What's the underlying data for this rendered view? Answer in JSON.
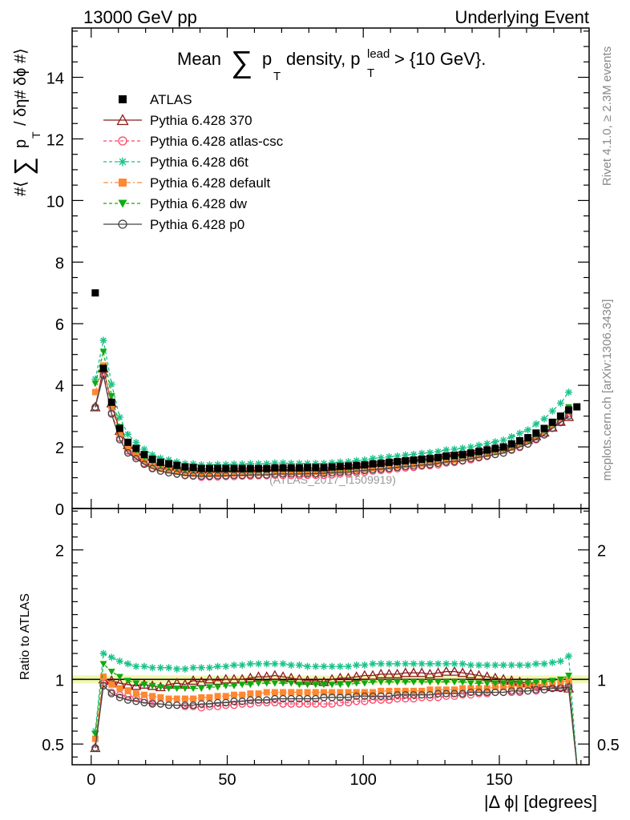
{
  "header": {
    "left": "13000 GeV pp",
    "right": "Underlying Event"
  },
  "side_text": {
    "rivet": "Rivet 4.1.0, ≥ 2.3M events",
    "mcplots": "mcplots.cern.ch [arXiv:1306.3436]"
  },
  "chart_data": {
    "type": "scatter",
    "title_parts": {
      "prefix": "Mean",
      "sum": "∑",
      "p": "p",
      "sub_t": "T",
      "middle": "density, p",
      "sup_lead": "lead",
      "sub_t2": "T",
      "suffix": "> {10 GeV}."
    },
    "ylabel_parts": {
      "a": "#⟨",
      "sum": "∑",
      "p": "p",
      "sub_t": "T",
      "b": "/ δη# δϕ #⟩"
    },
    "xlabel": "|Δ ϕ| [degrees]",
    "ratio_ylabel": "Ratio to ATLAS",
    "watermark": "(ATLAS_2017_I1509919)",
    "xlim": [
      -7,
      183
    ],
    "ylim": [
      0,
      15.6
    ],
    "ratio_ylim": [
      0.34,
      2.32
    ],
    "x_ticks": [
      0,
      50,
      100,
      150
    ],
    "x_tick_labels": [
      "0",
      "50",
      "100",
      "150"
    ],
    "y_ticks": [
      0,
      2,
      4,
      6,
      8,
      10,
      12,
      14
    ],
    "y_tick_labels": [
      "0",
      "2",
      "4",
      "6",
      "8",
      "10",
      "12",
      "14"
    ],
    "ratio_ticks": [
      0.5,
      1,
      2
    ],
    "ratio_tick_labels": [
      "0.5",
      "1",
      "2"
    ],
    "atlas": {
      "name": "ATLAS",
      "x": [
        1.5,
        4.5,
        7.5,
        10.5,
        13.5,
        16.5,
        19.5,
        22.5,
        25.5,
        28.5,
        31.5,
        34.5,
        37.5,
        40.5,
        43.5,
        46.5,
        49.5,
        52.5,
        55.5,
        58.5,
        61.5,
        64.5,
        67.5,
        70.5,
        73.5,
        76.5,
        79.5,
        82.5,
        85.5,
        88.5,
        91.5,
        94.5,
        97.5,
        100.5,
        103.5,
        106.5,
        109.5,
        112.5,
        115.5,
        118.5,
        121.5,
        124.5,
        127.5,
        130.5,
        133.5,
        136.5,
        139.5,
        142.5,
        145.5,
        148.5,
        151.5,
        154.5,
        157.5,
        160.5,
        163.5,
        166.5,
        169.5,
        172.5,
        175.5,
        178.5
      ],
      "y": [
        7.0,
        4.55,
        3.45,
        2.6,
        2.15,
        1.95,
        1.75,
        1.6,
        1.5,
        1.45,
        1.4,
        1.35,
        1.33,
        1.3,
        1.3,
        1.3,
        1.3,
        1.3,
        1.3,
        1.3,
        1.3,
        1.3,
        1.32,
        1.32,
        1.32,
        1.32,
        1.33,
        1.33,
        1.33,
        1.35,
        1.37,
        1.38,
        1.4,
        1.42,
        1.45,
        1.47,
        1.5,
        1.52,
        1.55,
        1.57,
        1.6,
        1.62,
        1.65,
        1.7,
        1.72,
        1.75,
        1.8,
        1.85,
        1.9,
        1.95,
        2.0,
        2.1,
        2.2,
        2.3,
        2.45,
        2.6,
        2.8,
        3.0,
        3.2,
        3.3
      ]
    },
    "series": [
      {
        "name": "Pythia 6.428 370",
        "color": "#8b1a1a",
        "marker": "triangle-open",
        "line": "solid",
        "ratio": [
          0.47,
          1.0,
          0.99,
          0.97,
          0.96,
          0.95,
          0.96,
          0.95,
          0.94,
          0.96,
          0.97,
          0.96,
          0.99,
          0.98,
          1.0,
          0.99,
          1.0,
          1.0,
          1.0,
          1.01,
          1.02,
          1.02,
          1.03,
          1.02,
          1.01,
          1.0,
          0.99,
          0.99,
          0.98,
          1.0,
          1.01,
          1.01,
          1.02,
          1.03,
          1.03,
          1.04,
          1.04,
          1.04,
          1.05,
          1.05,
          1.05,
          1.04,
          1.05,
          1.06,
          1.06,
          1.05,
          1.04,
          1.03,
          1.02,
          1.01,
          1.0,
          0.99,
          0.98,
          0.97,
          0.96,
          0.95,
          0.94,
          0.94,
          0.93,
          0.32
        ]
      },
      {
        "name": "Pythia 6.428 atlas-csc",
        "color": "#ff4466",
        "marker": "circle-open",
        "line": "dashed",
        "ratio": [
          0.47,
          0.97,
          0.9,
          0.88,
          0.87,
          0.86,
          0.84,
          0.82,
          0.81,
          0.8,
          0.8,
          0.79,
          0.79,
          0.78,
          0.79,
          0.79,
          0.8,
          0.8,
          0.81,
          0.81,
          0.82,
          0.82,
          0.82,
          0.81,
          0.81,
          0.81,
          0.81,
          0.81,
          0.81,
          0.81,
          0.82,
          0.82,
          0.83,
          0.83,
          0.84,
          0.84,
          0.84,
          0.85,
          0.85,
          0.85,
          0.86,
          0.86,
          0.86,
          0.87,
          0.87,
          0.88,
          0.88,
          0.89,
          0.89,
          0.9,
          0.9,
          0.9,
          0.9,
          0.91,
          0.91,
          0.92,
          0.93,
          0.94,
          0.96,
          0.32
        ]
      },
      {
        "name": "Pythia 6.428 d6t",
        "color": "#19c28a",
        "marker": "star",
        "line": "dashed",
        "ratio": [
          0.6,
          1.2,
          1.17,
          1.14,
          1.12,
          1.1,
          1.1,
          1.09,
          1.09,
          1.09,
          1.08,
          1.08,
          1.09,
          1.09,
          1.09,
          1.1,
          1.1,
          1.11,
          1.11,
          1.12,
          1.12,
          1.12,
          1.12,
          1.12,
          1.11,
          1.11,
          1.1,
          1.1,
          1.1,
          1.1,
          1.1,
          1.1,
          1.11,
          1.11,
          1.12,
          1.12,
          1.12,
          1.12,
          1.12,
          1.12,
          1.12,
          1.12,
          1.12,
          1.12,
          1.12,
          1.12,
          1.11,
          1.11,
          1.11,
          1.11,
          1.11,
          1.11,
          1.11,
          1.11,
          1.12,
          1.12,
          1.13,
          1.14,
          1.18,
          0.32
        ]
      },
      {
        "name": "Pythia 6.428 default",
        "color": "#ff8833",
        "marker": "square",
        "line": "dashdot",
        "ratio": [
          0.54,
          1.02,
          0.96,
          0.93,
          0.91,
          0.89,
          0.88,
          0.87,
          0.86,
          0.85,
          0.85,
          0.85,
          0.85,
          0.86,
          0.86,
          0.87,
          0.87,
          0.88,
          0.88,
          0.89,
          0.89,
          0.9,
          0.9,
          0.9,
          0.9,
          0.9,
          0.9,
          0.9,
          0.9,
          0.9,
          0.9,
          0.9,
          0.9,
          0.9,
          0.9,
          0.91,
          0.91,
          0.91,
          0.91,
          0.91,
          0.91,
          0.92,
          0.92,
          0.92,
          0.92,
          0.93,
          0.93,
          0.93,
          0.93,
          0.94,
          0.94,
          0.94,
          0.95,
          0.95,
          0.96,
          0.96,
          0.97,
          0.98,
          0.99,
          0.32
        ]
      },
      {
        "name": "Pythia 6.428 dw",
        "color": "#11aa11",
        "marker": "triangle-down",
        "line": "dashed",
        "ratio": [
          0.58,
          1.12,
          1.06,
          1.02,
          0.99,
          0.97,
          0.96,
          0.95,
          0.94,
          0.93,
          0.93,
          0.93,
          0.93,
          0.93,
          0.94,
          0.94,
          0.95,
          0.95,
          0.96,
          0.96,
          0.97,
          0.97,
          0.97,
          0.97,
          0.97,
          0.96,
          0.96,
          0.96,
          0.96,
          0.96,
          0.96,
          0.96,
          0.97,
          0.97,
          0.98,
          0.98,
          0.98,
          0.98,
          0.98,
          0.98,
          0.98,
          0.98,
          0.98,
          0.98,
          0.98,
          0.98,
          0.97,
          0.97,
          0.97,
          0.97,
          0.97,
          0.97,
          0.97,
          0.97,
          0.98,
          0.98,
          0.99,
          1.0,
          1.03,
          0.32
        ]
      },
      {
        "name": "Pythia 6.428 p0",
        "color": "#444444",
        "marker": "circle-open",
        "line": "solid",
        "ratio": [
          0.47,
          0.95,
          0.89,
          0.86,
          0.84,
          0.83,
          0.82,
          0.81,
          0.81,
          0.8,
          0.8,
          0.8,
          0.8,
          0.81,
          0.81,
          0.82,
          0.82,
          0.83,
          0.83,
          0.84,
          0.84,
          0.84,
          0.85,
          0.85,
          0.85,
          0.85,
          0.85,
          0.85,
          0.86,
          0.86,
          0.86,
          0.86,
          0.87,
          0.87,
          0.87,
          0.87,
          0.87,
          0.88,
          0.88,
          0.88,
          0.88,
          0.88,
          0.89,
          0.89,
          0.89,
          0.89,
          0.9,
          0.9,
          0.9,
          0.9,
          0.9,
          0.91,
          0.91,
          0.91,
          0.92,
          0.92,
          0.93,
          0.93,
          0.94,
          0.32
        ]
      }
    ]
  }
}
